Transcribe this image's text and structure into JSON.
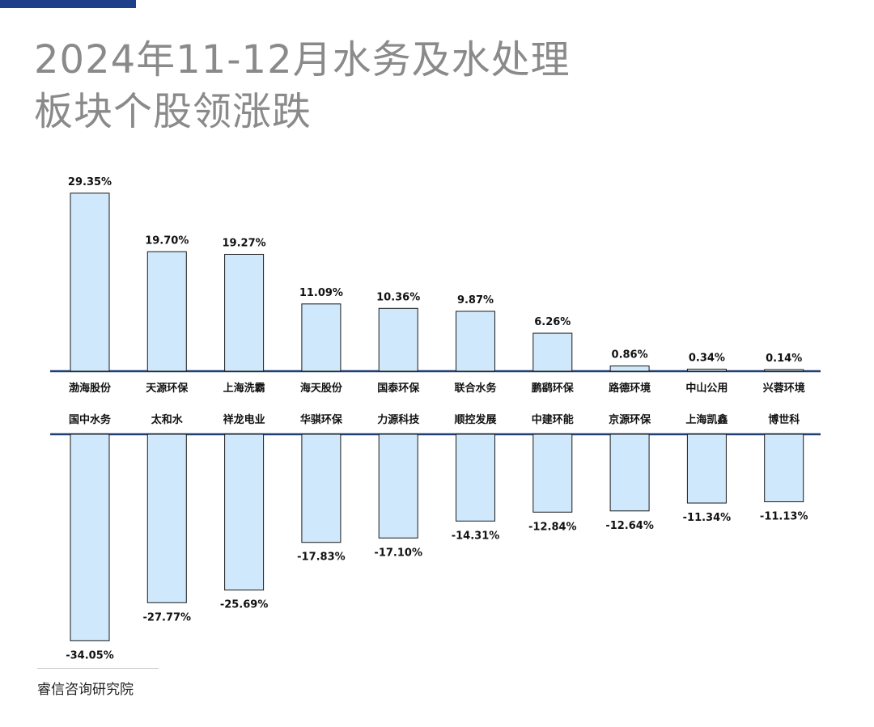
{
  "title": {
    "line1": "2024年11-12月水务及水处理",
    "line2": "板块个股领涨跌"
  },
  "source": "睿信咨询研究院",
  "colors": {
    "accent_bar": "#1f3f8a",
    "bar_fill": "#cfe8fb",
    "bar_stroke": "#1a1a1a",
    "axis": "#1f3f73",
    "title_text": "#8a8a8a"
  },
  "chart_data": {
    "type": "bar",
    "title": "2024年11-12月水务及水处理板块个股领涨跌",
    "unit": "%",
    "series": [
      {
        "name": "领涨",
        "categories": [
          "渤海股份",
          "天源环保",
          "上海洗霸",
          "海天股份",
          "国泰环保",
          "联合水务",
          "鹏鹞环保",
          "路德环境",
          "中山公用",
          "兴蓉环境"
        ],
        "values": [
          29.35,
          19.7,
          19.27,
          11.09,
          10.36,
          9.87,
          6.26,
          0.86,
          0.34,
          0.14
        ],
        "labels": [
          "29.35%",
          "19.70%",
          "19.27%",
          "11.09%",
          "10.36%",
          "9.87%",
          "6.26%",
          "0.86%",
          "0.34%",
          "0.14%"
        ]
      },
      {
        "name": "领跌",
        "categories": [
          "国中水务",
          "太和水",
          "祥龙电业",
          "华骐环保",
          "力源科技",
          "顺控发展",
          "中建环能",
          "京源环保",
          "上海凯鑫",
          "博世科"
        ],
        "values": [
          -34.05,
          -27.77,
          -25.69,
          -17.83,
          -17.1,
          -14.31,
          -12.84,
          -12.64,
          -11.34,
          -11.13
        ],
        "labels": [
          "-34.05%",
          "-27.77%",
          "-25.69%",
          "-17.83%",
          "-17.10%",
          "-14.31%",
          "-12.84%",
          "-12.64%",
          "-11.34%",
          "-11.13%"
        ]
      }
    ],
    "grid": false,
    "legend": "none"
  }
}
